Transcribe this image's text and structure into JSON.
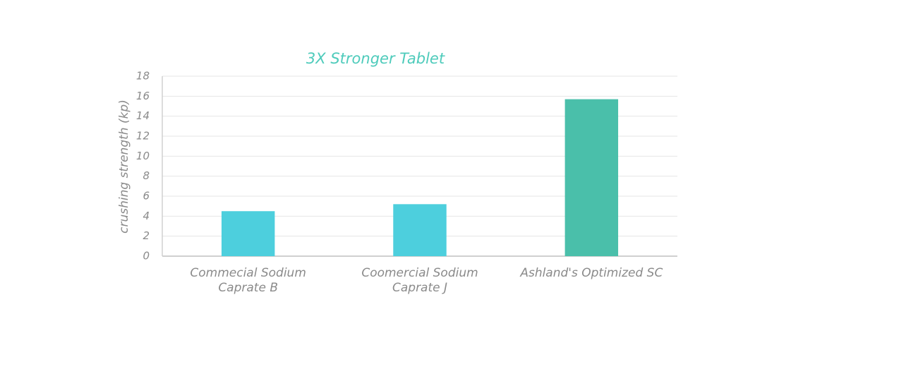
{
  "chart_data": {
    "type": "bar",
    "title": "3X Stronger Tablet",
    "y_label": "crushing strength (kp)",
    "categories": [
      "Commecial Sodium Caprate B",
      "Coomercial Sodium Caprate J",
      "Ashland's Optimized SC"
    ],
    "values": [
      4.5,
      5.2,
      15.7
    ],
    "colors": [
      "#4dcfdd",
      "#4dcfdd",
      "#4abfaa"
    ],
    "ylim": [
      0,
      18
    ],
    "yticks": [
      0,
      2,
      4,
      6,
      8,
      10,
      12,
      14,
      16,
      18
    ],
    "grid": true
  }
}
